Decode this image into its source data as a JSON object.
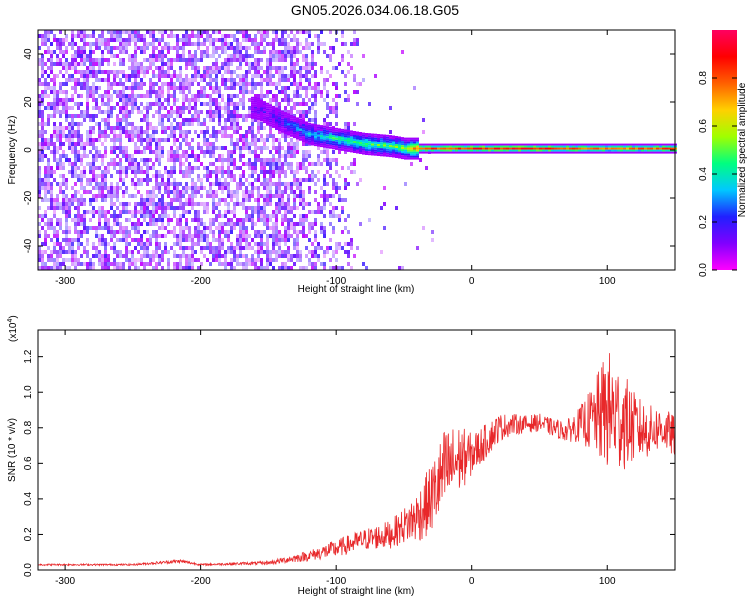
{
  "title": "GN05.2026.034.06.18.G05",
  "colors": {
    "snr_line": "#e8282a",
    "colormap": [
      "#ff00ff",
      "#8000ff",
      "#2020ff",
      "#00c8ff",
      "#00ff80",
      "#a0ff00",
      "#ffd000",
      "#ff6000",
      "#ff0000",
      "#ff0060"
    ]
  },
  "chart_data": [
    {
      "type": "heatmap",
      "xlabel": "Height of straight line (km)",
      "ylabel": "Frequency (Hz)",
      "xlim": [
        -320,
        150
      ],
      "ylim": [
        -50,
        50
      ],
      "xticks": [
        -300,
        -200,
        -100,
        0,
        100
      ],
      "yticks": [
        -40,
        -20,
        0,
        20,
        40
      ],
      "colorbar": {
        "label": "Normalized spectral amplitude",
        "range": [
          0.0,
          1.0
        ],
        "ticks": [
          "0.0",
          "0.2",
          "0.4",
          "0.6",
          "0.8"
        ]
      },
      "ridge": {
        "x": [
          -160,
          -140,
          -120,
          -100,
          -80,
          -60,
          -50,
          -40,
          0,
          50,
          100,
          150
        ],
        "freq": [
          18,
          12,
          7,
          5,
          3,
          2,
          1,
          1,
          1,
          1,
          1,
          1
        ],
        "amplitude": [
          0.1,
          0.2,
          0.35,
          0.45,
          0.45,
          0.5,
          0.55,
          0.8,
          0.85,
          0.85,
          0.75,
          0.8
        ]
      }
    },
    {
      "type": "line",
      "xlabel": "Height of straight line (km)",
      "ylabel": "SNR (10 * v/v)",
      "scale_note": "(x10",
      "scale_exp": "4",
      "xlim": [
        -320,
        150
      ],
      "ylim": [
        0,
        1.35
      ],
      "xticks": [
        -300,
        -200,
        -100,
        0,
        100
      ],
      "yticks": [
        "0.0",
        "0.2",
        "0.4",
        "0.6",
        "0.8",
        "1.0",
        "1.2"
      ],
      "series": [
        {
          "x": [
            -320,
            -250,
            -215,
            -200,
            -150,
            -120,
            -100,
            -80,
            -60,
            -50,
            -40,
            -30,
            -20,
            -10,
            0,
            10,
            20,
            30,
            40,
            50,
            60,
            70,
            80,
            90,
            100,
            110,
            120,
            130,
            140,
            150
          ],
          "values": [
            0.03,
            0.03,
            0.05,
            0.03,
            0.04,
            0.08,
            0.12,
            0.17,
            0.2,
            0.25,
            0.3,
            0.4,
            0.55,
            0.62,
            0.65,
            0.72,
            0.8,
            0.82,
            0.82,
            0.83,
            0.8,
            0.78,
            0.82,
            0.85,
            0.9,
            0.85,
            0.8,
            0.78,
            0.8,
            0.75
          ],
          "noise": [
            0.005,
            0.005,
            0.01,
            0.005,
            0.01,
            0.03,
            0.05,
            0.06,
            0.08,
            0.1,
            0.15,
            0.2,
            0.25,
            0.2,
            0.12,
            0.1,
            0.08,
            0.06,
            0.05,
            0.05,
            0.05,
            0.06,
            0.1,
            0.2,
            0.35,
            0.3,
            0.2,
            0.15,
            0.12,
            0.12
          ]
        }
      ]
    }
  ]
}
